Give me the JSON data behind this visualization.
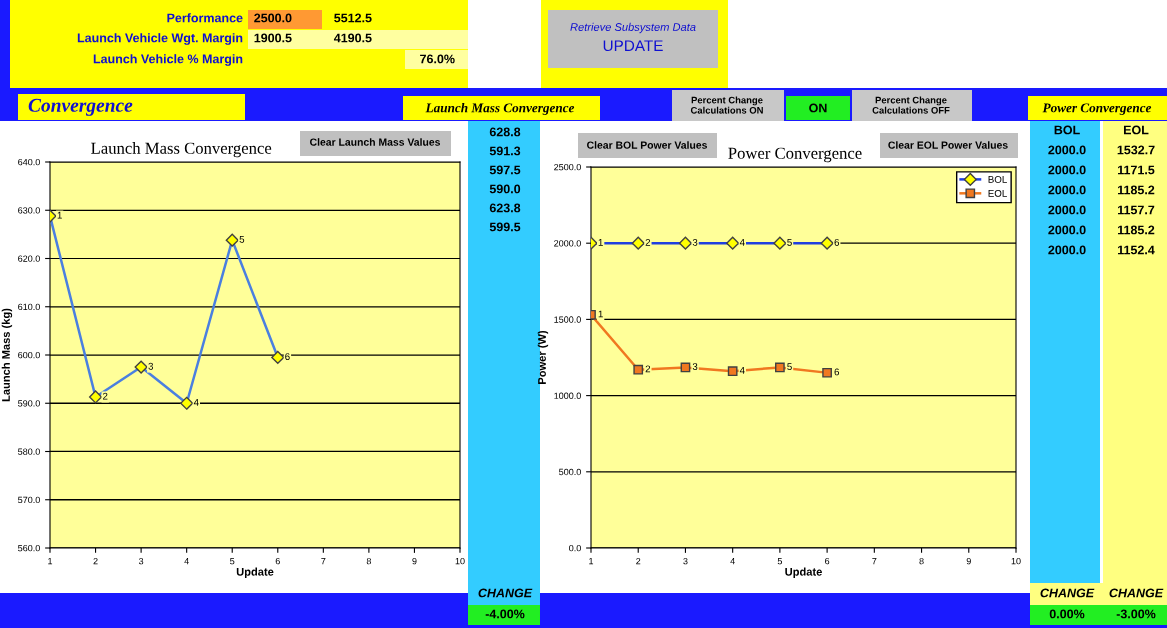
{
  "chart_data": [
    {
      "type": "other",
      "annotations": [
        "Performance",
        "2500.0",
        "5512.5",
        "Launch Vehicle Wgt. Margin",
        "1900.5",
        "4190.5",
        "Launch Vehicle % Margin",
        "76.0%",
        "Retrieve Subsystem Data",
        "UPDATE",
        "Convergence",
        "Launch Mass Convergence",
        "Percent Change\nCalculations ON",
        "ON",
        "Percent Change\nCalculations OFF",
        "Power Convergence",
        "Clear Launch Mass Values",
        "Clear BOL Power Values",
        "Clear EOL Power Values",
        "628.8",
        "591.3",
        "597.5",
        "590.0",
        "623.8",
        "599.5",
        "BOL",
        "EOL",
        "2000.0",
        "1532.7",
        "2000.0",
        "1171.5",
        "2000.0",
        "1185.2",
        "2000.0",
        "1157.7",
        "2000.0",
        "1185.2",
        "2000.0",
        "1152.4",
        "CHANGE",
        "-4.00%",
        "CHANGE",
        "CHANGE",
        "0.00%",
        "-3.00%"
      ]
    },
    {
      "type": "line",
      "title": "Launch Mass Convergence",
      "xlabel": "Update",
      "ylabel": "Launch Mass (kg)",
      "x": [
        1,
        2,
        3,
        4,
        5,
        6
      ],
      "series": [
        {
          "color": "#4a7fe0",
          "marker": "diamond",
          "values": [
            628.8,
            591.3,
            597.5,
            590.0,
            623.8,
            599.5
          ]
        }
      ],
      "annotations": [
        {
          "text": "1",
          "x": 1,
          "y": 628.8
        },
        {
          "text": "2",
          "x": 2,
          "y": 591.3
        },
        {
          "text": "3",
          "x": 3,
          "y": 597.5
        },
        {
          "text": "4",
          "x": 4,
          "y": 590.0
        },
        {
          "text": "5",
          "x": 5,
          "y": 623.8
        },
        {
          "text": "6",
          "x": 6,
          "y": 599.5
        }
      ],
      "xlim": [
        1,
        10
      ],
      "xticks": [
        1,
        2,
        3,
        4,
        5,
        6,
        7,
        8,
        9,
        10
      ],
      "ylim": [
        560,
        640
      ],
      "yticks": [
        {
          "value": 560,
          "label": "560.0"
        },
        {
          "value": 570,
          "label": "570.0"
        },
        {
          "value": 580,
          "label": "580.0"
        },
        {
          "value": 590,
          "label": "590.0"
        },
        {
          "value": 600,
          "label": "600.0"
        },
        {
          "value": 610,
          "label": "610.0"
        },
        {
          "value": 620,
          "label": "620.0"
        },
        {
          "value": 630,
          "label": "630.0"
        },
        {
          "value": 640,
          "label": "640.0"
        }
      ],
      "grid": "y",
      "line_style": "solid"
    },
    {
      "type": "line",
      "title": "Power Convergence",
      "xlabel": "Update",
      "ylabel": "Power (W)",
      "x": [
        1,
        2,
        3,
        4,
        5,
        6
      ],
      "series": [
        {
          "name": "BOL",
          "color": "#1f3fe0",
          "marker": "diamond",
          "values": [
            2000,
            2000,
            2000,
            2000,
            2000,
            2000
          ]
        },
        {
          "name": "EOL",
          "color": "#f07820",
          "marker": "square",
          "values": [
            1530,
            1170,
            1185,
            1160,
            1185,
            1150
          ]
        }
      ],
      "annotations": [
        {
          "text": "1",
          "x": 1,
          "y": 2000
        },
        {
          "text": "2",
          "x": 2,
          "y": 2000
        },
        {
          "text": "3",
          "x": 3,
          "y": 2000
        },
        {
          "text": "4",
          "x": 4,
          "y": 2000
        },
        {
          "text": "5",
          "x": 5,
          "y": 2000
        },
        {
          "text": "6",
          "x": 6,
          "y": 2000
        },
        {
          "text": "1",
          "x": 1,
          "y": 1530
        },
        {
          "text": "2",
          "x": 2,
          "y": 1170
        },
        {
          "text": "3",
          "x": 3,
          "y": 1185
        },
        {
          "text": "4",
          "x": 4,
          "y": 1160
        },
        {
          "text": "5",
          "x": 5,
          "y": 1185
        },
        {
          "text": "6",
          "x": 6,
          "y": 1150
        }
      ],
      "xlim": [
        1,
        10
      ],
      "xticks": [
        1,
        2,
        3,
        4,
        5,
        6,
        7,
        8,
        9,
        10
      ],
      "ylim": [
        0,
        2500
      ],
      "yticks": [
        {
          "value": 0,
          "label": "0.0"
        },
        {
          "value": 500,
          "label": "500.0"
        },
        {
          "value": 1000,
          "label": "1000.0"
        },
        {
          "value": 1500,
          "label": "1500.0"
        },
        {
          "value": 2000,
          "label": "2000.0"
        },
        {
          "value": 2500,
          "label": "2500.0"
        }
      ],
      "grid": "y",
      "legend": "top right",
      "line_style": "solid"
    }
  ]
}
